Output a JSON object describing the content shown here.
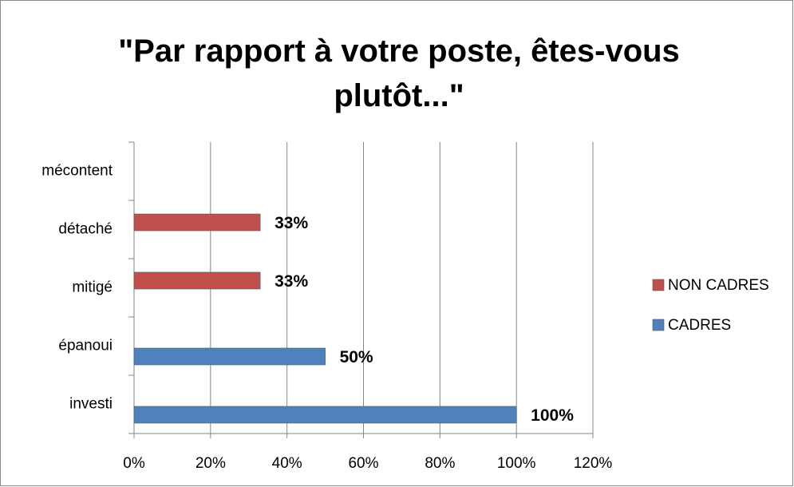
{
  "chart_data": {
    "type": "bar",
    "orientation": "horizontal",
    "title": "\"Par rapport à votre poste, êtes-vous plutôt...\"",
    "categories": [
      "mécontent",
      "détaché",
      "mitigé",
      "épanoui",
      "investi"
    ],
    "series": [
      {
        "name": "NON CADRES",
        "color": "#c0504d",
        "values": [
          null,
          33,
          33,
          null,
          null
        ],
        "value_labels": [
          null,
          "33%",
          "33%",
          null,
          null
        ]
      },
      {
        "name": "CADRES",
        "color": "#4f81bd",
        "values": [
          null,
          null,
          null,
          50,
          100
        ],
        "value_labels": [
          null,
          null,
          null,
          "50%",
          "100%"
        ]
      }
    ],
    "xlim": [
      0,
      120
    ],
    "xticks": [
      {
        "value": 0,
        "label": "0%"
      },
      {
        "value": 20,
        "label": "20%"
      },
      {
        "value": 40,
        "label": "40%"
      },
      {
        "value": 60,
        "label": "60%"
      },
      {
        "value": 80,
        "label": "80%"
      },
      {
        "value": 100,
        "label": "100%"
      },
      {
        "value": 120,
        "label": "120%"
      }
    ],
    "grid": true,
    "legend": "right"
  }
}
